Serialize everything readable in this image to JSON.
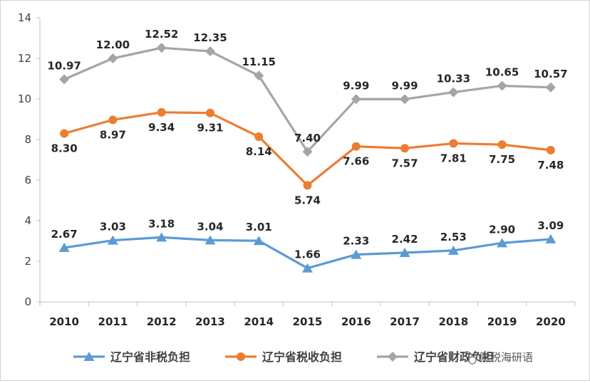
{
  "chart_data": {
    "type": "line",
    "title": "",
    "xlabel": "",
    "ylabel": "",
    "categories": [
      "2010",
      "2011",
      "2012",
      "2013",
      "2014",
      "2015",
      "2016",
      "2017",
      "2018",
      "2019",
      "2020"
    ],
    "ylim": [
      0,
      14
    ],
    "yticks": [
      0,
      2,
      4,
      6,
      8,
      10,
      12,
      14
    ],
    "grid": false,
    "legend_position": "bottom",
    "series": [
      {
        "name": "辽宁省非税负担",
        "color": "#5b9bd5",
        "marker": "triangle",
        "label_position": "above",
        "values": [
          2.67,
          3.03,
          3.18,
          3.04,
          3.01,
          1.66,
          2.33,
          2.42,
          2.53,
          2.9,
          3.09
        ],
        "labels": [
          "2.67",
          "3.03",
          "3.18",
          "3.04",
          "3.01",
          "1.66",
          "2.33",
          "2.42",
          "2.53",
          "2.90",
          "3.09"
        ]
      },
      {
        "name": "辽宁省税收负担",
        "color": "#ed7d31",
        "marker": "circle",
        "label_position": "below",
        "values": [
          8.3,
          8.97,
          9.34,
          9.31,
          8.14,
          5.74,
          7.66,
          7.57,
          7.81,
          7.75,
          7.48
        ],
        "labels": [
          "8.30",
          "8.97",
          "9.34",
          "9.31",
          "8.14",
          "5.74",
          "7.66",
          "7.57",
          "7.81",
          "7.75",
          "7.48"
        ]
      },
      {
        "name": "辽宁省财政负担",
        "color": "#a5a5a5",
        "marker": "diamond",
        "label_position": "above",
        "values": [
          10.97,
          12.0,
          12.52,
          12.35,
          11.15,
          7.4,
          9.99,
          9.99,
          10.33,
          10.65,
          10.57
        ],
        "labels": [
          "10.97",
          "12.00",
          "12.52",
          "12.35",
          "11.15",
          "7.40",
          "9.99",
          "9.99",
          "10.33",
          "10.65",
          "10.57"
        ]
      }
    ]
  },
  "watermark": {
    "icon": "wechat-icon",
    "text": "财税海研语"
  }
}
